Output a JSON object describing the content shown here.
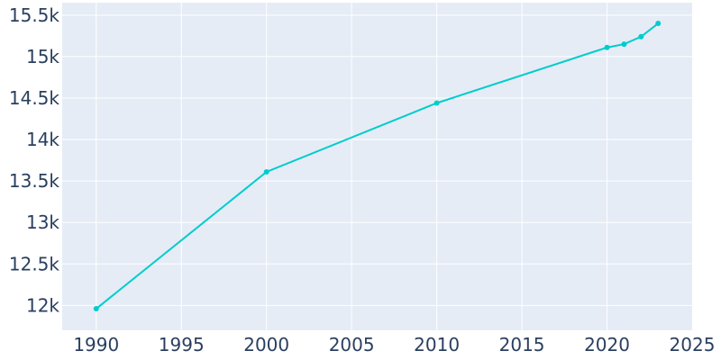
{
  "chart_data": {
    "type": "line",
    "title": "",
    "xlabel": "",
    "ylabel": "",
    "x": [
      1990,
      2000,
      2010,
      2020,
      2021,
      2022,
      2023
    ],
    "series": [
      {
        "values": [
          11960,
          13610,
          14440,
          15110,
          15150,
          15240,
          15400
        ]
      }
    ],
    "xlim": [
      1988,
      2025
    ],
    "ylim": [
      11700,
      15650
    ],
    "x_ticks": [
      1990,
      1995,
      2000,
      2005,
      2010,
      2015,
      2020,
      2025
    ],
    "x_tick_labels": [
      "1990",
      "1995",
      "2000",
      "2005",
      "2010",
      "2015",
      "2020",
      "2025"
    ],
    "y_ticks": [
      12000,
      12500,
      13000,
      13500,
      14000,
      14500,
      15000,
      15500
    ],
    "y_tick_labels": [
      "12k",
      "12.5k",
      "13k",
      "13.5k",
      "14k",
      "14.5k",
      "15k",
      "15.5k"
    ],
    "grid": true,
    "colors": {
      "line": "#00cccc",
      "plot_background": "#e5ecf6",
      "grid": "#ffffff",
      "text": "#2a3f5f"
    }
  }
}
